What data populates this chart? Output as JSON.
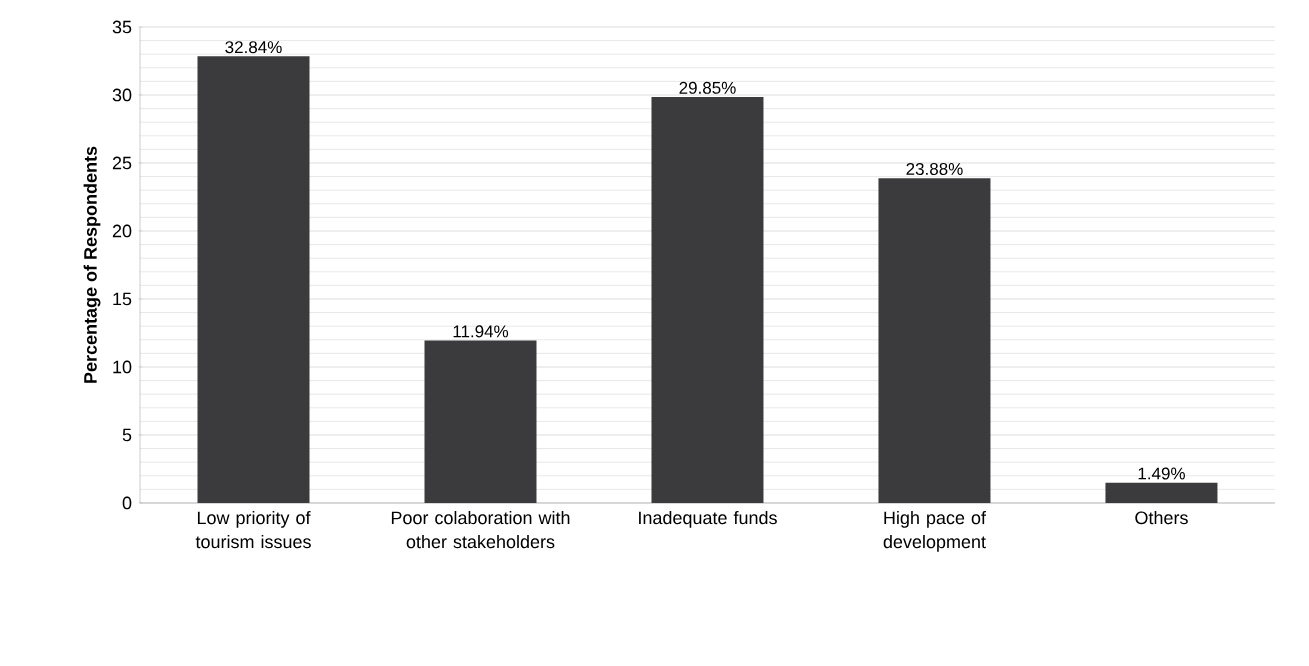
{
  "chart_data": {
    "type": "bar",
    "ylabel": "Percentage of Respondents",
    "categories": [
      "Low priority of tourism issues",
      "Poor colaboration with other stakeholders",
      "Inadequate funds",
      "High pace of development",
      "Others"
    ],
    "values": [
      32.84,
      11.94,
      29.85,
      23.88,
      1.49
    ],
    "value_labels": [
      "32.84%",
      "11.94%",
      "29.85%",
      "23.88%",
      "1.49%"
    ],
    "color": "#3b3b3d",
    "ylim": [
      0,
      35
    ],
    "yticks": [
      0,
      5,
      10,
      15,
      20,
      25,
      30,
      35
    ],
    "grid": "y"
  }
}
